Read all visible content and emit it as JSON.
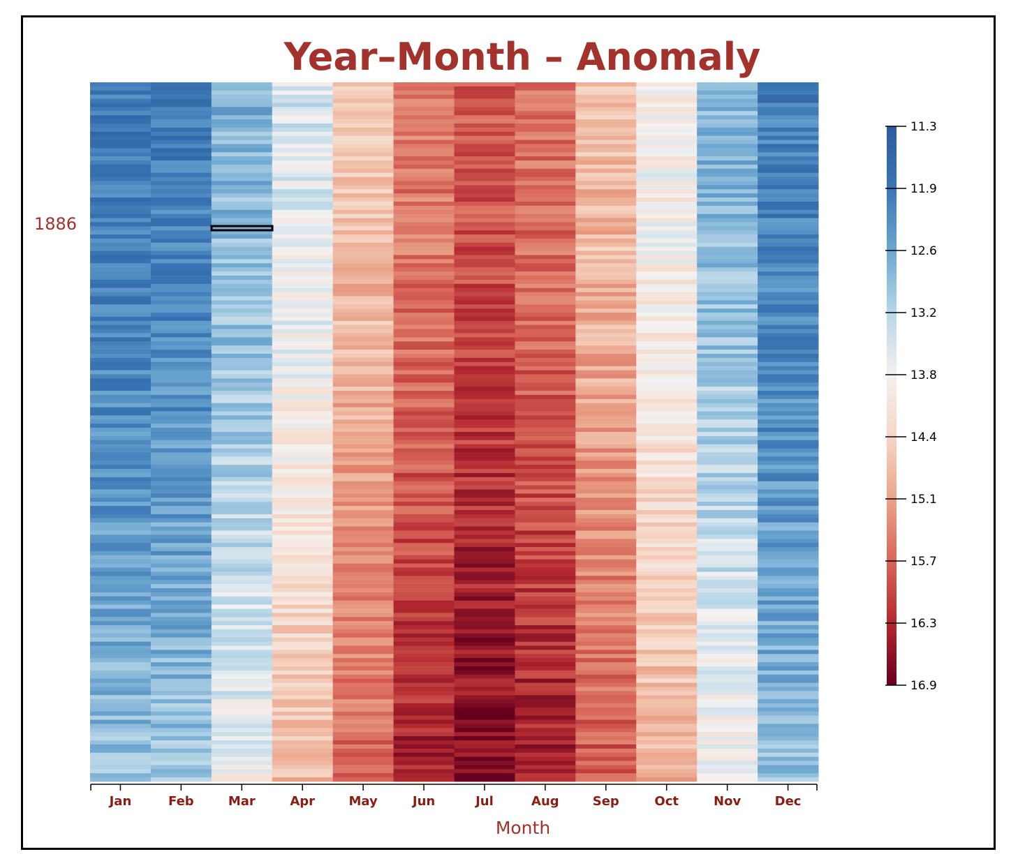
{
  "chart_data": {
    "type": "heatmap",
    "title": "Year–Month – Anomaly",
    "xlabel": "Month",
    "x_categories": [
      "Jan",
      "Feb",
      "Mar",
      "Apr",
      "May",
      "Jun",
      "Jul",
      "Aug",
      "Sep",
      "Oct",
      "Nov",
      "Dec"
    ],
    "y_label_shown": "1886",
    "highlighted_cell": {
      "month": "Mar",
      "year": "1886"
    },
    "colorbar": {
      "ticks": [
        "11.3",
        "11.9",
        "12.6",
        "13.2",
        "13.8",
        "14.4",
        "15.1",
        "15.7",
        "16.3",
        "16.9"
      ],
      "domain": [
        11.3,
        16.9
      ],
      "colors": [
        "#2b5c9e",
        "#3a75b4",
        "#6da7d0",
        "#b8d6e8",
        "#f3f1f0",
        "#f6d6c5",
        "#eaa48a",
        "#d8665a",
        "#b2282f",
        "#67001f"
      ]
    },
    "monthly_mean_profile": [
      {
        "month": "Jan",
        "early": 11.9,
        "late": 12.9
      },
      {
        "month": "Feb",
        "early": 12.0,
        "late": 13.0
      },
      {
        "month": "Mar",
        "early": 12.7,
        "late": 13.8
      },
      {
        "month": "Apr",
        "early": 13.5,
        "late": 14.8
      },
      {
        "month": "May",
        "early": 14.6,
        "late": 15.7
      },
      {
        "month": "Jun",
        "early": 15.4,
        "late": 16.4
      },
      {
        "month": "Jul",
        "early": 15.8,
        "late": 16.8
      },
      {
        "month": "Aug",
        "early": 15.5,
        "late": 16.5
      },
      {
        "month": "Sep",
        "early": 14.7,
        "late": 15.8
      },
      {
        "month": "Oct",
        "early": 13.8,
        "late": 14.9
      },
      {
        "month": "Nov",
        "early": 12.7,
        "late": 13.9
      },
      {
        "month": "Dec",
        "early": 12.0,
        "late": 12.9
      }
    ]
  }
}
